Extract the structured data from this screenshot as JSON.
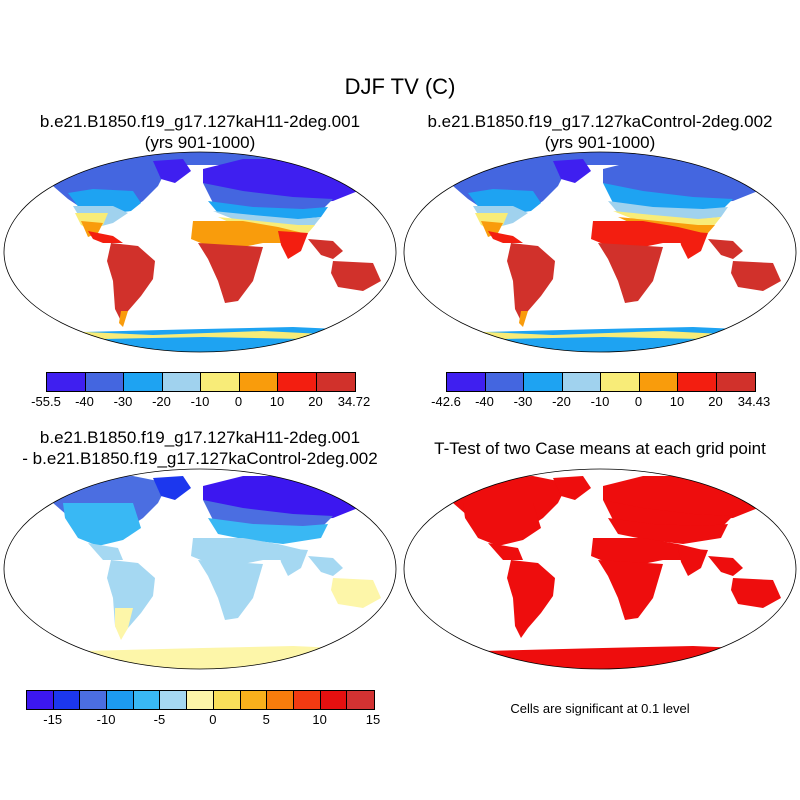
{
  "figure_title": "DJF TV (C)",
  "panels": [
    {
      "title_line1": "b.e21.B1850.f19_g17.127kaH11-2deg.001",
      "title_line2": "(yrs 901-1000)",
      "colorbar": {
        "colors": [
          "#3f1ff0",
          "#4466e0",
          "#1ea3f2",
          "#a0d2ee",
          "#f8ec78",
          "#f99c0c",
          "#f31e10",
          "#d1312b"
        ],
        "labels": [
          "-55.5",
          "-40",
          "-30",
          "-20",
          "-10",
          "0",
          "10",
          "20",
          "34.72"
        ]
      }
    },
    {
      "title_line1": "b.e21.B1850.f19_g17.127kaControl-2deg.002",
      "title_line2": "(yrs 901-1000)",
      "colorbar": {
        "colors": [
          "#3f1ff0",
          "#4466e0",
          "#1ea3f2",
          "#a0d2ee",
          "#f8ec78",
          "#f99c0c",
          "#f31e10",
          "#d1312b"
        ],
        "labels": [
          "-42.6",
          "-40",
          "-30",
          "-20",
          "-10",
          "0",
          "10",
          "20",
          "34.43"
        ]
      }
    },
    {
      "title_line1": "b.e21.B1850.f19_g17.127kaH11-2deg.001",
      "title_line2": "- b.e21.B1850.f19_g17.127kaControl-2deg.002",
      "colorbar": {
        "colors": [
          "#3c17f0",
          "#1c37ee",
          "#4b6ee1",
          "#1d9bf0",
          "#39b8f4",
          "#a5d8f2",
          "#fdf6a9",
          "#fae05a",
          "#f9b01c",
          "#f77c0c",
          "#f33a12",
          "#e51010",
          "#d23232"
        ],
        "labels": [
          "-15",
          "-10",
          "-5",
          "0",
          "5",
          "10",
          "15"
        ]
      }
    },
    {
      "title_line1": "T-Test of two Case means at each grid point",
      "title_line2": "",
      "footnote": "Cells are significant at 0.1 level"
    }
  ]
}
